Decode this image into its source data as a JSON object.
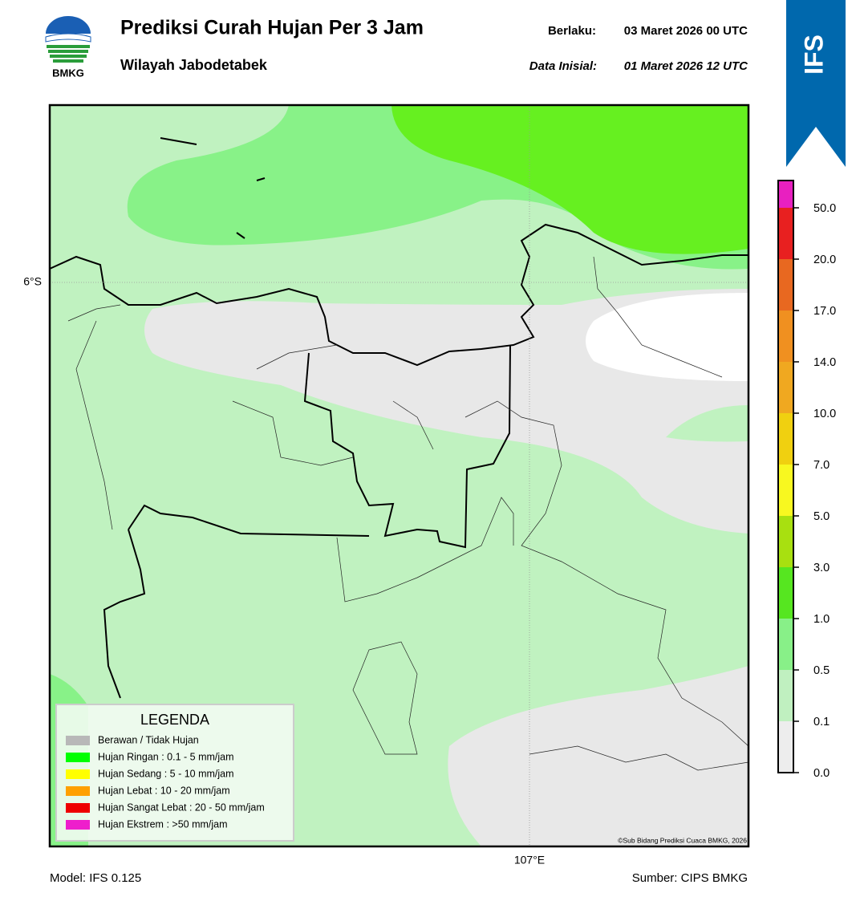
{
  "header": {
    "logo_text": "BMKG",
    "title": "Prediksi Curah Hujan Per 3 Jam",
    "subtitle": "Wilayah Jabodetabek",
    "valid_label": "Berlaku:",
    "valid_value": "03 Maret 2026 00 UTC",
    "init_label": "Data Inisial:",
    "init_value": "01 Maret 2026 12 UTC"
  },
  "badge": "IFS",
  "map": {
    "lat_label": "6°S",
    "lon_label": "107°E",
    "credit": "©Sub Bidang Prediksi Cuaca BMKG, 2026"
  },
  "legend": {
    "title": "LEGENDA",
    "items": [
      {
        "color": "#b8b8b8",
        "label": "Berawan / Tidak Hujan"
      },
      {
        "color": "#00ff00",
        "label": "Hujan Ringan : 0.1 - 5 mm/jam"
      },
      {
        "color": "#ffff00",
        "label": "Hujan Sedang : 5 - 10 mm/jam"
      },
      {
        "color": "#ffa000",
        "label": "Hujan Lebat : 10 - 20 mm/jam"
      },
      {
        "color": "#ee0000",
        "label": "Hujan Sangat Lebat : 20 - 50 mm/jam"
      },
      {
        "color": "#ee1ecc",
        "label": "Hujan Ekstrem : >50 mm/jam"
      }
    ]
  },
  "colorbar": {
    "labels": [
      "0.0",
      "0.1",
      "0.5",
      "1.0",
      "3.0",
      "5.0",
      "7.0",
      "10.0",
      "14.0",
      "17.0",
      "20.0",
      "50.0"
    ],
    "colors": [
      "#ededed",
      "#c0f0c0",
      "#88f088",
      "#56e620",
      "#a8e010",
      "#f8f820",
      "#f0d010",
      "#f0a820",
      "#f09020",
      "#e86820",
      "#e82020",
      "#e820c0"
    ]
  },
  "footer": {
    "model": "Model: IFS 0.125",
    "source": "Sumber: CIPS BMKG"
  }
}
